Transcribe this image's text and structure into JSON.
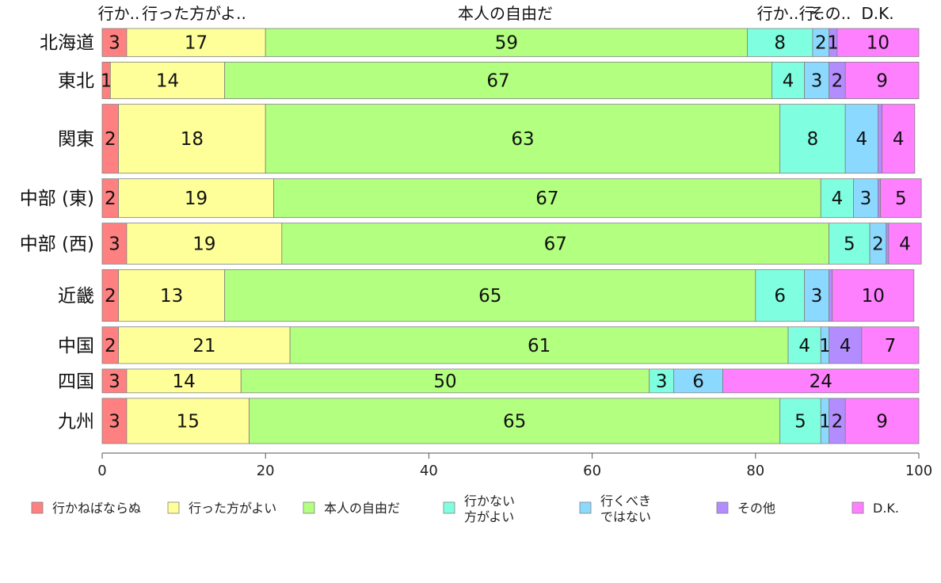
{
  "chart_data": {
    "type": "bar",
    "orientation": "horizontal",
    "stacked": true,
    "title": "",
    "xlabel": "",
    "ylabel": "",
    "xlim": [
      0,
      100
    ],
    "xticks": [
      0,
      20,
      40,
      60,
      80,
      100
    ],
    "grid": false,
    "legend_position": "bottom",
    "top_labels": [
      {
        "text": "行か..",
        "series": 0
      },
      {
        "text": "行った方がよ..",
        "series": 1
      },
      {
        "text": "本人の自由だ",
        "series": 2
      },
      {
        "text": "行か..",
        "series": 3
      },
      {
        "text": "行..",
        "series": 4
      },
      {
        "text": "その..",
        "series": 5
      },
      {
        "text": "D.K.",
        "series": 6
      }
    ],
    "categories": [
      "北海道",
      "東北",
      "関東",
      "中部 (東)",
      "中部 (西)",
      "近畿",
      "中国",
      "四国",
      "九州"
    ],
    "category_weights": [
      1.3,
      1.7,
      3.2,
      1.8,
      1.9,
      2.4,
      1.7,
      1.1,
      2.1
    ],
    "series": [
      {
        "name": "行かねばならぬ",
        "color": "#ff8080",
        "values": [
          3,
          1,
          2,
          2,
          3,
          2,
          2,
          3,
          3
        ]
      },
      {
        "name": "行った方がよい",
        "color": "#ffff99",
        "values": [
          17,
          14,
          18,
          19,
          19,
          13,
          21,
          14,
          15
        ]
      },
      {
        "name": "本人の自由だ",
        "color": "#b3ff80",
        "values": [
          59,
          67,
          63,
          67,
          67,
          65,
          61,
          50,
          65
        ]
      },
      {
        "name": "行かない\n方がよい",
        "color": "#80ffe0",
        "values": [
          8,
          4,
          8,
          4,
          5,
          6,
          4,
          3,
          5
        ]
      },
      {
        "name": "行くべき\nではない",
        "color": "#8cd9ff",
        "values": [
          2,
          3,
          4,
          3,
          2,
          3,
          1,
          6,
          1
        ]
      },
      {
        "name": "その他",
        "color": "#b38cff",
        "values": [
          1,
          2,
          0.5,
          0.3,
          0.3,
          0.4,
          4,
          0,
          2
        ]
      },
      {
        "name": "D.K.",
        "color": "#ff80ff",
        "values": [
          10,
          9,
          4,
          5,
          4,
          10,
          7,
          24,
          9
        ]
      }
    ],
    "displayed_labels": [
      [
        "3",
        "17",
        "59",
        "8",
        "2",
        "1",
        "10"
      ],
      [
        "1",
        "14",
        "67",
        "4",
        "3",
        "2",
        "9"
      ],
      [
        "2",
        "18",
        "63",
        "8",
        "4",
        "",
        "4"
      ],
      [
        "2",
        "19",
        "67",
        "4",
        "3",
        "",
        "5"
      ],
      [
        "3",
        "19",
        "67",
        "5",
        "2",
        "",
        "4"
      ],
      [
        "2",
        "13",
        "65",
        "6",
        "3",
        "",
        "10"
      ],
      [
        "2",
        "21",
        "61",
        "4",
        "1",
        "4",
        "7"
      ],
      [
        "3",
        "14",
        "50",
        "3",
        "6",
        "",
        "24"
      ],
      [
        "3",
        "15",
        "65",
        "5",
        "1",
        "2",
        "9"
      ]
    ]
  }
}
